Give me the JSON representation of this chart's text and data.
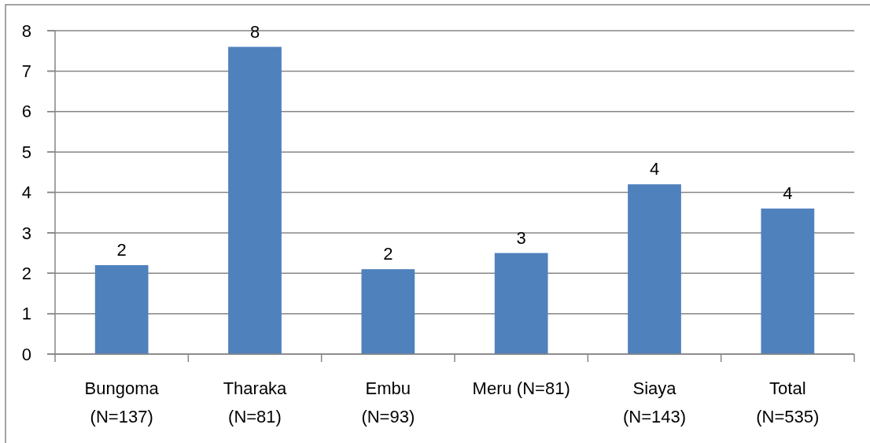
{
  "chart_data": {
    "type": "bar",
    "categories": [
      "Bungoma\n(N=137)",
      "Tharaka\n(N=81)",
      "Embu\n(N=93)",
      "Meru (N=81)",
      "Siaya\n(N=143)",
      "Total\n(N=535)"
    ],
    "values": [
      2.2,
      7.6,
      2.1,
      2.5,
      4.2,
      3.6
    ],
    "color": "#4f81bd",
    "ylim": [
      0,
      8
    ],
    "yticks": [
      0,
      1,
      2,
      3,
      4,
      5,
      6,
      7,
      8
    ],
    "grid": "y",
    "value_labels": [
      "2",
      "8",
      "2",
      "3",
      "4",
      "4"
    ]
  }
}
